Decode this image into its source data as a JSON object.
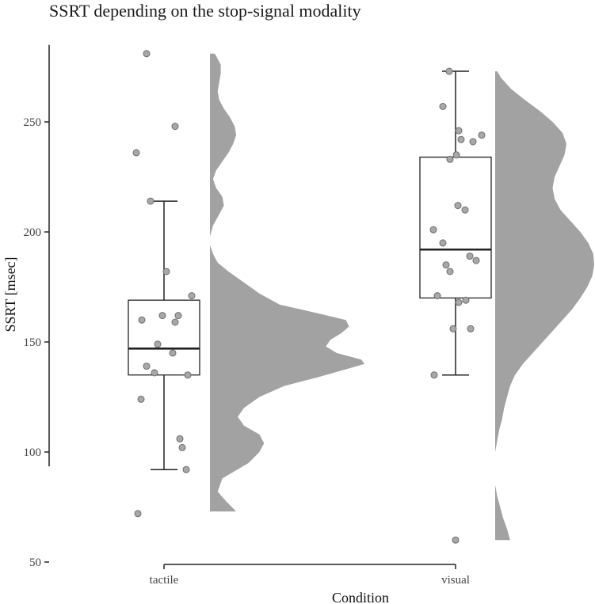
{
  "chart_data": {
    "type": "raincloud",
    "title": "SSRT depending on the stop-signal modality",
    "xlabel": "Condition",
    "ylabel": "SSRT [msec]",
    "ylim": [
      50,
      285
    ],
    "yticks": [
      50,
      100,
      150,
      200,
      250
    ],
    "grid": false,
    "legend": "none",
    "colors": {
      "density": "#a2a2a2",
      "point": "#a8a8a8",
      "box": "#222222"
    },
    "groups": [
      {
        "category": "tactile",
        "box": {
          "whisker_low": 92,
          "q1": 135,
          "median": 147,
          "q3": 169,
          "whisker_high": 214
        },
        "points": [
          281,
          248,
          236,
          214,
          182,
          171,
          162,
          162,
          160,
          159,
          149,
          145,
          139,
          136,
          135,
          124,
          106,
          102,
          92,
          72
        ],
        "density": [
          [
            73,
            0.17
          ],
          [
            78,
            0.1
          ],
          [
            82,
            0.05
          ],
          [
            88,
            0.08
          ],
          [
            95,
            0.25
          ],
          [
            100,
            0.32
          ],
          [
            104,
            0.35
          ],
          [
            108,
            0.32
          ],
          [
            112,
            0.22
          ],
          [
            116,
            0.18
          ],
          [
            120,
            0.22
          ],
          [
            125,
            0.32
          ],
          [
            130,
            0.48
          ],
          [
            134,
            0.7
          ],
          [
            138,
            0.9
          ],
          [
            140,
            1.0
          ],
          [
            142,
            0.98
          ],
          [
            145,
            0.82
          ],
          [
            148,
            0.75
          ],
          [
            151,
            0.78
          ],
          [
            154,
            0.85
          ],
          [
            157,
            0.9
          ],
          [
            160,
            0.88
          ],
          [
            163,
            0.7
          ],
          [
            167,
            0.45
          ],
          [
            172,
            0.32
          ],
          [
            177,
            0.22
          ],
          [
            182,
            0.12
          ],
          [
            186,
            0.05
          ],
          [
            190,
            0.02
          ],
          [
            194,
            0.0
          ],
          [
            198,
            0.0
          ],
          [
            203,
            0.02
          ],
          [
            208,
            0.06
          ],
          [
            212,
            0.09
          ],
          [
            216,
            0.08
          ],
          [
            220,
            0.04
          ],
          [
            224,
            0.02
          ],
          [
            228,
            0.04
          ],
          [
            232,
            0.08
          ],
          [
            236,
            0.12
          ],
          [
            240,
            0.15
          ],
          [
            244,
            0.17
          ],
          [
            248,
            0.16
          ],
          [
            252,
            0.13
          ],
          [
            256,
            0.09
          ],
          [
            260,
            0.06
          ],
          [
            264,
            0.05
          ],
          [
            268,
            0.06
          ],
          [
            272,
            0.07
          ],
          [
            276,
            0.07
          ],
          [
            280,
            0.04
          ],
          [
            281,
            0.03
          ]
        ]
      },
      {
        "category": "visual",
        "box": {
          "whisker_low": 135,
          "q1": 170,
          "median": 192,
          "q3": 234,
          "whisker_high": 273
        },
        "points": [
          273,
          257,
          246,
          244,
          242,
          241,
          235,
          233,
          212,
          210,
          201,
          195,
          189,
          187,
          185,
          182,
          171,
          169,
          168,
          156,
          156,
          135,
          60
        ],
        "density": [
          [
            60,
            0.15
          ],
          [
            65,
            0.12
          ],
          [
            70,
            0.08
          ],
          [
            75,
            0.05
          ],
          [
            80,
            0.02
          ],
          [
            85,
            0.0
          ],
          [
            90,
            0.0
          ],
          [
            100,
            0.0
          ],
          [
            105,
            0.02
          ],
          [
            110,
            0.04
          ],
          [
            115,
            0.07
          ],
          [
            120,
            0.09
          ],
          [
            125,
            0.12
          ],
          [
            130,
            0.15
          ],
          [
            135,
            0.2
          ],
          [
            140,
            0.28
          ],
          [
            145,
            0.38
          ],
          [
            150,
            0.48
          ],
          [
            155,
            0.58
          ],
          [
            160,
            0.68
          ],
          [
            165,
            0.78
          ],
          [
            170,
            0.86
          ],
          [
            175,
            0.93
          ],
          [
            180,
            0.98
          ],
          [
            185,
            1.0
          ],
          [
            190,
            0.99
          ],
          [
            195,
            0.94
          ],
          [
            200,
            0.86
          ],
          [
            205,
            0.76
          ],
          [
            210,
            0.66
          ],
          [
            215,
            0.6
          ],
          [
            220,
            0.58
          ],
          [
            225,
            0.6
          ],
          [
            230,
            0.65
          ],
          [
            235,
            0.7
          ],
          [
            240,
            0.72
          ],
          [
            245,
            0.68
          ],
          [
            250,
            0.58
          ],
          [
            255,
            0.45
          ],
          [
            260,
            0.3
          ],
          [
            265,
            0.16
          ],
          [
            270,
            0.06
          ],
          [
            273,
            0.02
          ]
        ]
      }
    ]
  }
}
